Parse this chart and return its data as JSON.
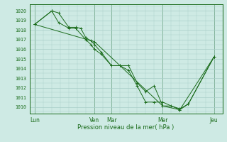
{
  "background_color": "#ceeae4",
  "grid_color": "#a8cec8",
  "line_color": "#1a6b1a",
  "marker_color": "#1a6b1a",
  "xlabel": "Pression niveau de la mer( hPa )",
  "ylim": [
    1009.3,
    1020.7
  ],
  "yticks": [
    1010,
    1011,
    1012,
    1013,
    1014,
    1015,
    1016,
    1017,
    1018,
    1019,
    1020
  ],
  "xtick_labels": [
    "Lun",
    "Ven",
    "Mar",
    "Mer",
    "Jeu"
  ],
  "xtick_positions": [
    0,
    3.5,
    4.5,
    7.5,
    10.5
  ],
  "xlim": [
    -0.3,
    11.0
  ],
  "series1": [
    [
      0.0,
      1018.6
    ],
    [
      1.0,
      1020.0
    ],
    [
      1.4,
      1019.8
    ],
    [
      2.0,
      1018.3
    ],
    [
      2.4,
      1018.3
    ],
    [
      2.7,
      1018.2
    ],
    [
      3.0,
      1017.2
    ],
    [
      3.3,
      1016.9
    ],
    [
      3.5,
      1016.5
    ],
    [
      3.9,
      1015.7
    ],
    [
      4.5,
      1014.3
    ],
    [
      5.0,
      1014.3
    ],
    [
      5.5,
      1014.3
    ],
    [
      6.0,
      1012.5
    ],
    [
      6.5,
      1011.6
    ],
    [
      7.0,
      1012.2
    ],
    [
      7.5,
      1010.1
    ],
    [
      8.0,
      1010.1
    ],
    [
      8.5,
      1009.8
    ],
    [
      9.0,
      1010.3
    ],
    [
      10.5,
      1015.2
    ]
  ],
  "series2": [
    [
      0.0,
      1018.6
    ],
    [
      1.0,
      1020.0
    ],
    [
      1.4,
      1018.8
    ],
    [
      2.0,
      1018.2
    ],
    [
      2.4,
      1018.2
    ],
    [
      3.0,
      1017.0
    ],
    [
      3.3,
      1016.5
    ],
    [
      3.5,
      1016.0
    ],
    [
      3.9,
      1015.5
    ],
    [
      4.5,
      1014.3
    ],
    [
      5.0,
      1014.3
    ],
    [
      5.5,
      1013.8
    ],
    [
      6.0,
      1012.2
    ],
    [
      6.5,
      1010.5
    ],
    [
      7.0,
      1010.5
    ],
    [
      7.5,
      1010.5
    ],
    [
      8.5,
      1009.7
    ],
    [
      9.0,
      1010.3
    ],
    [
      10.5,
      1015.2
    ]
  ],
  "series3": [
    [
      0.0,
      1018.6
    ],
    [
      3.5,
      1016.8
    ],
    [
      5.0,
      1014.3
    ],
    [
      7.5,
      1010.1
    ],
    [
      8.5,
      1009.7
    ],
    [
      10.5,
      1015.2
    ]
  ]
}
